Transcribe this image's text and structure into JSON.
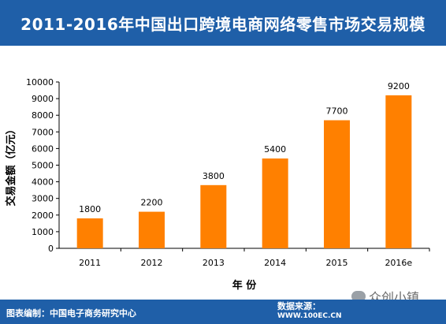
{
  "title": "2011-2016年中国出口跨境电商网络零售市场交易规模",
  "footer": {
    "source_left": "图表编制：中国电子商务研究中心",
    "source_right": "数据来源：",
    "url": "WWW.100EC.CN"
  },
  "watermark": "众创小镇",
  "colors": {
    "header": "#1f5fa8",
    "bar": "#ff8000",
    "text": "#000000"
  },
  "chart_data": {
    "type": "bar",
    "categories": [
      "2011",
      "2012",
      "2013",
      "2014",
      "2015",
      "2016e"
    ],
    "values": [
      1800,
      2200,
      3800,
      5400,
      7700,
      9200
    ],
    "data_labels": [
      "1800",
      "2200",
      "3800",
      "5400",
      "7700",
      "9200"
    ],
    "xlabel": "年 份",
    "ylabel": "交易金额（亿元）",
    "ylim": [
      0,
      10000
    ],
    "yticks": [
      0,
      1000,
      2000,
      3000,
      4000,
      5000,
      6000,
      7000,
      8000,
      9000,
      10000
    ],
    "grid": false,
    "legend": "none"
  }
}
